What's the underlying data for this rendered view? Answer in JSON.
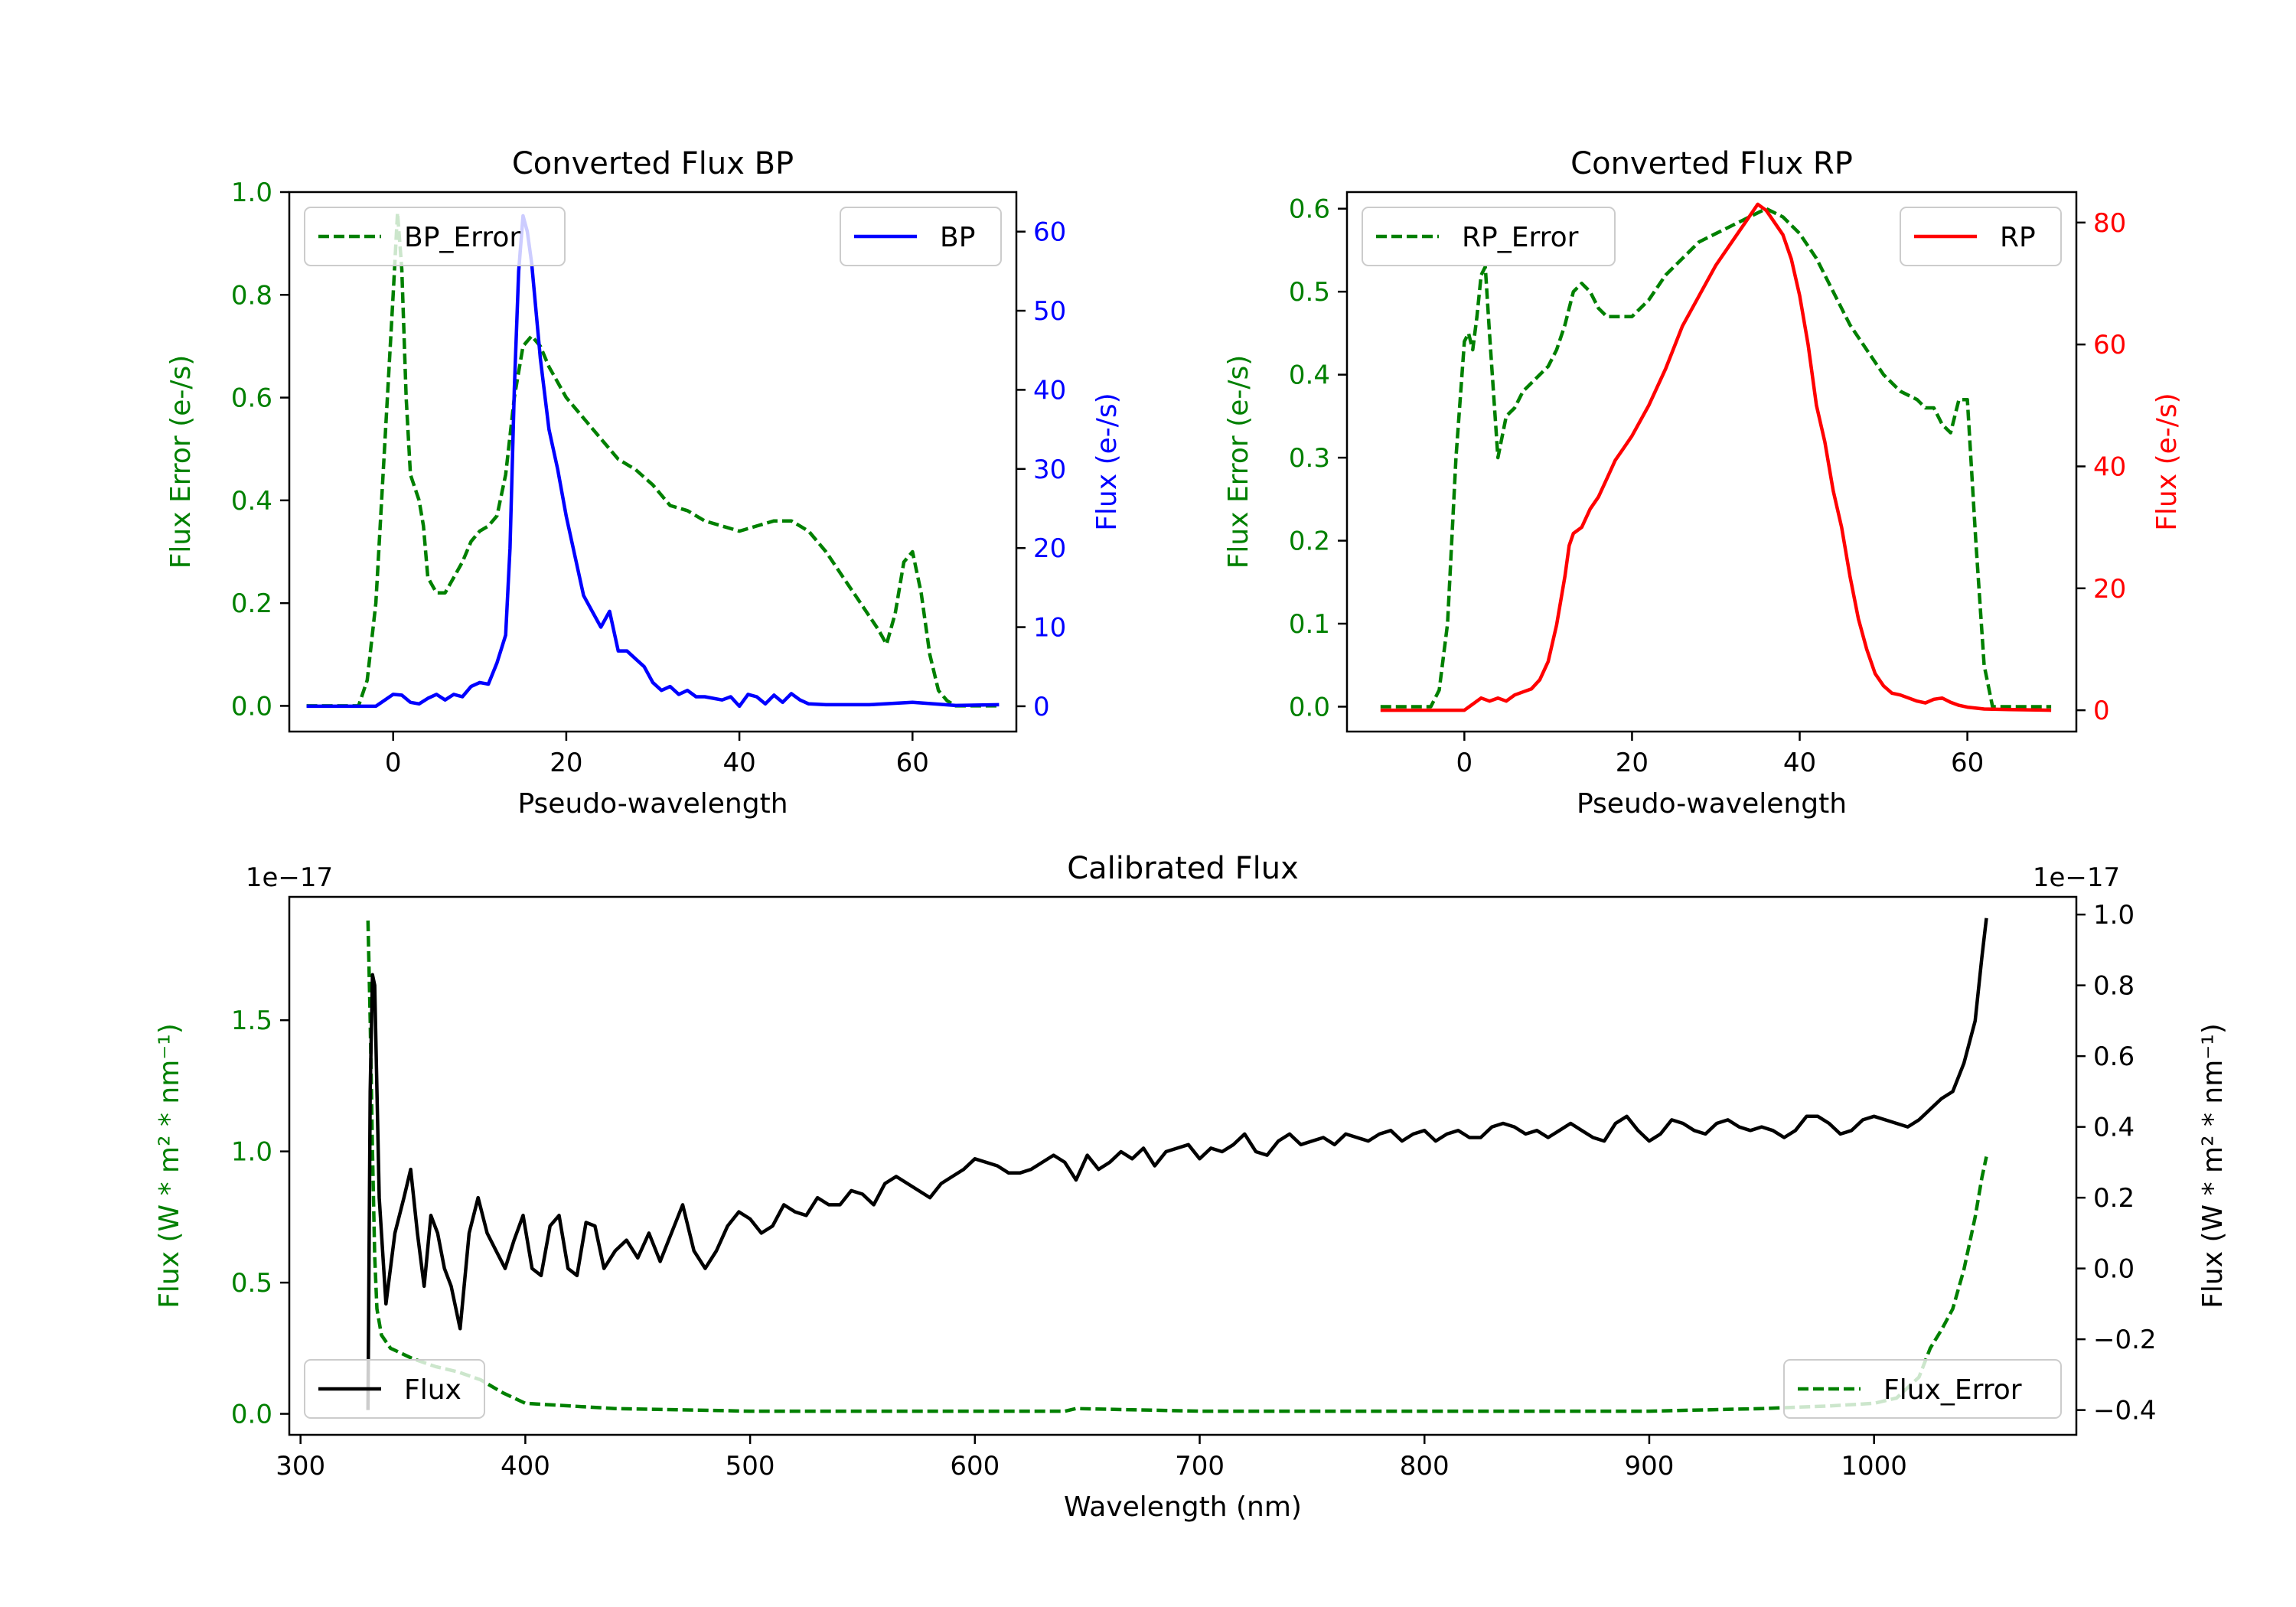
{
  "colors": {
    "error": "#008000",
    "bp": "#0000ff",
    "rp": "#ff0000",
    "flux": "#000000",
    "frame": "#000000"
  },
  "chart_data": [
    {
      "id": "bp",
      "type": "line",
      "title": "Converted Flux BP",
      "xlabel": "Pseudo-wavelength",
      "ylabel_left": "Flux Error (e-/s)",
      "ylabel_right": "Flux (e-/s)",
      "xlim": [
        -12,
        72
      ],
      "ylim_left": [
        -0.05,
        1.0
      ],
      "ylim_right": [
        -3.2,
        65
      ],
      "xticks": [
        0,
        20,
        40,
        60
      ],
      "yticks_left": [
        "0.0",
        "0.2",
        "0.4",
        "0.6",
        "0.8",
        "1.0"
      ],
      "yticks_right": [
        "0",
        "10",
        "20",
        "30",
        "40",
        "50",
        "60"
      ],
      "legend_left": "BP_Error",
      "legend_right": "BP",
      "legend_positions": [
        "upper left",
        "upper right"
      ],
      "series": [
        {
          "name": "BP_Error",
          "axis": "left",
          "style": "dashed",
          "color_key": "error",
          "x": [
            -10,
            -4,
            -3,
            -2,
            -1,
            0,
            0.5,
            1,
            1.5,
            2,
            3,
            3.5,
            4,
            5,
            6,
            7,
            8,
            9,
            10,
            11,
            12,
            13,
            14,
            15,
            16,
            17,
            18,
            19,
            20,
            22,
            24,
            26,
            28,
            30,
            32,
            34,
            36,
            38,
            40,
            42,
            44,
            46,
            48,
            50,
            52,
            54,
            56,
            57,
            58,
            59,
            60,
            61,
            62,
            63,
            64,
            65,
            66,
            70
          ],
          "y": [
            0.0,
            0.0,
            0.05,
            0.2,
            0.5,
            0.8,
            0.96,
            0.85,
            0.6,
            0.45,
            0.4,
            0.35,
            0.25,
            0.22,
            0.22,
            0.25,
            0.28,
            0.32,
            0.34,
            0.35,
            0.37,
            0.45,
            0.6,
            0.7,
            0.72,
            0.7,
            0.66,
            0.63,
            0.6,
            0.56,
            0.52,
            0.48,
            0.46,
            0.43,
            0.39,
            0.38,
            0.36,
            0.35,
            0.34,
            0.35,
            0.36,
            0.36,
            0.34,
            0.3,
            0.25,
            0.2,
            0.15,
            0.12,
            0.18,
            0.28,
            0.3,
            0.22,
            0.1,
            0.03,
            0.01,
            0.0,
            0.0,
            0.0
          ]
        },
        {
          "name": "BP",
          "axis": "right",
          "style": "solid",
          "color_key": "bp",
          "x": [
            -10,
            -2,
            0,
            1,
            2,
            3,
            4,
            5,
            6,
            7,
            8,
            9,
            10,
            11,
            12,
            13,
            13.5,
            14,
            14.5,
            15,
            15.5,
            16,
            17,
            18,
            19,
            20,
            21,
            22,
            23,
            24,
            25,
            26,
            27,
            28,
            29,
            30,
            31,
            32,
            33,
            34,
            35,
            36,
            38,
            39,
            40,
            41,
            42,
            43,
            44,
            45,
            46,
            47,
            48,
            50,
            55,
            60,
            65,
            70
          ],
          "y": [
            0,
            0,
            1.5,
            1.4,
            0.5,
            0.3,
            1,
            1.5,
            0.8,
            1.5,
            1.2,
            2.5,
            3,
            2.8,
            5.5,
            9,
            20,
            40,
            55,
            62,
            60,
            56,
            44,
            35,
            30,
            24,
            19,
            14,
            12,
            10,
            12,
            7,
            7,
            6,
            5,
            3,
            2,
            2.5,
            1.5,
            2,
            1.2,
            1.2,
            0.8,
            1.2,
            0,
            1.5,
            1.2,
            0.3,
            1.4,
            0.5,
            1.6,
            0.8,
            0.3,
            0.2,
            0.2,
            0.5,
            0.1,
            0.2
          ]
        }
      ]
    },
    {
      "id": "rp",
      "type": "line",
      "title": "Converted Flux RP",
      "xlabel": "Pseudo-wavelength",
      "ylabel_left": "Flux Error (e-/s)",
      "ylabel_right": "Flux (e-/s)",
      "xlim": [
        -14,
        73
      ],
      "ylim_left": [
        -0.03,
        0.62
      ],
      "ylim_right": [
        -3.5,
        85
      ],
      "xticks": [
        0,
        20,
        40,
        60
      ],
      "yticks_left": [
        "0.0",
        "0.1",
        "0.2",
        "0.3",
        "0.4",
        "0.5",
        "0.6"
      ],
      "yticks_right": [
        "0",
        "20",
        "40",
        "60",
        "80"
      ],
      "legend_left": "RP_Error",
      "legend_right": "RP",
      "legend_positions": [
        "upper left",
        "upper right"
      ],
      "series": [
        {
          "name": "RP_Error",
          "axis": "left",
          "style": "dashed",
          "color_key": "error",
          "x": [
            -10,
            -4,
            -3,
            -2,
            -1,
            0,
            0.5,
            1,
            1.5,
            2,
            2.5,
            3,
            4,
            5,
            6,
            7,
            8,
            9,
            10,
            11,
            12,
            13,
            14,
            15,
            16,
            17,
            18,
            19,
            20,
            22,
            24,
            26,
            28,
            30,
            32,
            34,
            36,
            38,
            40,
            42,
            44,
            46,
            48,
            50,
            52,
            54,
            55,
            56,
            57,
            58,
            59,
            60,
            61,
            62,
            63,
            64,
            70
          ],
          "y": [
            0.0,
            0.0,
            0.02,
            0.1,
            0.3,
            0.44,
            0.45,
            0.43,
            0.47,
            0.52,
            0.53,
            0.45,
            0.3,
            0.35,
            0.36,
            0.38,
            0.39,
            0.4,
            0.41,
            0.43,
            0.46,
            0.5,
            0.51,
            0.5,
            0.48,
            0.47,
            0.47,
            0.47,
            0.47,
            0.49,
            0.52,
            0.54,
            0.56,
            0.57,
            0.58,
            0.59,
            0.6,
            0.59,
            0.57,
            0.54,
            0.5,
            0.46,
            0.43,
            0.4,
            0.38,
            0.37,
            0.36,
            0.36,
            0.34,
            0.33,
            0.37,
            0.37,
            0.2,
            0.05,
            0.0,
            0.0,
            0.0
          ]
        },
        {
          "name": "RP",
          "axis": "right",
          "style": "solid",
          "color_key": "rp",
          "x": [
            -10,
            -2,
            0,
            1,
            2,
            3,
            4,
            5,
            6,
            7,
            8,
            9,
            10,
            11,
            12,
            12.5,
            13,
            14,
            15,
            16,
            17,
            18,
            19,
            20,
            22,
            24,
            26,
            28,
            30,
            32,
            34,
            35,
            36,
            37,
            38,
            39,
            40,
            41,
            42,
            43,
            44,
            45,
            46,
            47,
            48,
            49,
            50,
            51,
            52,
            53,
            54,
            55,
            56,
            57,
            58,
            59,
            60,
            62,
            65,
            70
          ],
          "y": [
            0,
            0,
            0,
            1,
            2,
            1.5,
            2,
            1.5,
            2.5,
            3,
            3.5,
            5,
            8,
            14,
            22,
            27,
            29,
            30,
            33,
            35,
            38,
            41,
            43,
            45,
            50,
            56,
            63,
            68,
            73,
            77,
            81,
            83,
            82,
            80,
            78,
            74,
            68,
            60,
            50,
            44,
            36,
            30,
            22,
            15,
            10,
            6,
            4,
            2.8,
            2.5,
            2,
            1.5,
            1.2,
            1.8,
            2,
            1.3,
            0.8,
            0.5,
            0.2,
            0.1,
            0
          ]
        }
      ]
    },
    {
      "id": "cal",
      "type": "line",
      "title": "Calibrated Flux",
      "xlabel": "Wavelength (nm)",
      "ylabel_left": "Flux (W * m² * nm⁻¹)",
      "ylabel_right": "Flux (W * m² * nm⁻¹)",
      "offset_left": "1e−17",
      "offset_right": "1e−17",
      "xlim": [
        295,
        1090
      ],
      "ylim_left": [
        -0.08,
        1.97
      ],
      "ylim_right": [
        -0.47,
        1.05
      ],
      "xticks": [
        300,
        400,
        500,
        600,
        700,
        800,
        900,
        1000
      ],
      "yticks_left": [
        "0.0",
        "0.5",
        "1.0",
        "1.5"
      ],
      "yticks_right": [
        "−0.4",
        "−0.2",
        "0.0",
        "0.2",
        "0.4",
        "0.6",
        "0.8",
        "1.0"
      ],
      "legend_left": "Flux",
      "legend_right": "Flux_Error",
      "legend_positions": [
        "lower left",
        "lower right"
      ],
      "series": [
        {
          "name": "Flux_Error",
          "axis": "left",
          "style": "dashed",
          "color_key": "error",
          "x": [
            330,
            331,
            332,
            333,
            334,
            336,
            340,
            350,
            360,
            370,
            380,
            390,
            400,
            420,
            440,
            500,
            600,
            640,
            645,
            700,
            800,
            900,
            950,
            980,
            1000,
            1010,
            1020,
            1025,
            1030,
            1035,
            1040,
            1045,
            1048,
            1050
          ],
          "y": [
            1.88,
            1.5,
            1.0,
            0.6,
            0.4,
            0.3,
            0.25,
            0.21,
            0.18,
            0.16,
            0.13,
            0.08,
            0.04,
            0.03,
            0.02,
            0.01,
            0.01,
            0.01,
            0.02,
            0.01,
            0.01,
            0.01,
            0.02,
            0.03,
            0.04,
            0.06,
            0.14,
            0.25,
            0.32,
            0.4,
            0.55,
            0.75,
            0.9,
            0.98
          ]
        },
        {
          "name": "Flux",
          "axis": "right",
          "style": "solid",
          "color_key": "flux",
          "x": [
            330,
            331,
            332,
            333,
            335,
            338,
            342,
            346,
            349,
            352,
            355,
            358,
            361,
            364,
            367,
            371,
            375,
            379,
            383,
            387,
            391,
            395,
            399,
            403,
            407,
            411,
            415,
            419,
            423,
            427,
            431,
            435,
            440,
            445,
            450,
            455,
            460,
            465,
            470,
            475,
            480,
            485,
            490,
            495,
            500,
            505,
            510,
            515,
            520,
            525,
            530,
            535,
            540,
            545,
            550,
            555,
            560,
            565,
            570,
            575,
            580,
            585,
            590,
            595,
            600,
            605,
            610,
            615,
            620,
            625,
            630,
            635,
            640,
            645,
            650,
            655,
            660,
            665,
            670,
            675,
            680,
            685,
            690,
            695,
            700,
            705,
            710,
            715,
            720,
            725,
            730,
            735,
            740,
            745,
            750,
            755,
            760,
            765,
            770,
            775,
            780,
            785,
            790,
            795,
            800,
            805,
            810,
            815,
            820,
            825,
            830,
            835,
            840,
            845,
            850,
            855,
            860,
            865,
            870,
            875,
            880,
            885,
            890,
            895,
            900,
            905,
            910,
            915,
            920,
            925,
            930,
            935,
            940,
            945,
            950,
            955,
            960,
            965,
            970,
            975,
            980,
            985,
            990,
            995,
            1000,
            1005,
            1010,
            1015,
            1020,
            1025,
            1030,
            1035,
            1040,
            1045,
            1048,
            1050
          ],
          "y": [
            -0.4,
            0.5,
            0.83,
            0.8,
            0.2,
            -0.1,
            0.1,
            0.2,
            0.28,
            0.1,
            -0.05,
            0.15,
            0.1,
            0.0,
            -0.05,
            -0.17,
            0.1,
            0.2,
            0.1,
            0.05,
            -0.0,
            0.08,
            0.15,
            0.0,
            -0.02,
            0.12,
            0.15,
            0.0,
            -0.02,
            0.13,
            0.12,
            0.0,
            0.05,
            0.08,
            0.03,
            0.1,
            0.02,
            0.1,
            0.18,
            0.05,
            0.0,
            0.05,
            0.12,
            0.16,
            0.14,
            0.1,
            0.12,
            0.18,
            0.16,
            0.15,
            0.2,
            0.18,
            0.18,
            0.22,
            0.21,
            0.18,
            0.24,
            0.26,
            0.24,
            0.22,
            0.2,
            0.24,
            0.26,
            0.28,
            0.31,
            0.3,
            0.29,
            0.27,
            0.27,
            0.28,
            0.3,
            0.32,
            0.3,
            0.25,
            0.32,
            0.28,
            0.3,
            0.33,
            0.31,
            0.34,
            0.29,
            0.33,
            0.34,
            0.35,
            0.31,
            0.34,
            0.33,
            0.35,
            0.38,
            0.33,
            0.32,
            0.36,
            0.38,
            0.35,
            0.36,
            0.37,
            0.35,
            0.38,
            0.37,
            0.36,
            0.38,
            0.39,
            0.36,
            0.38,
            0.39,
            0.36,
            0.38,
            0.39,
            0.37,
            0.37,
            0.4,
            0.41,
            0.4,
            0.38,
            0.39,
            0.37,
            0.39,
            0.41,
            0.39,
            0.37,
            0.36,
            0.41,
            0.43,
            0.39,
            0.36,
            0.38,
            0.42,
            0.41,
            0.39,
            0.38,
            0.41,
            0.42,
            0.4,
            0.39,
            0.4,
            0.39,
            0.37,
            0.39,
            0.43,
            0.43,
            0.41,
            0.38,
            0.39,
            0.42,
            0.43,
            0.42,
            0.41,
            0.4,
            0.42,
            0.45,
            0.48,
            0.5,
            0.58,
            0.7,
            0.88,
            0.99
          ]
        }
      ]
    }
  ]
}
